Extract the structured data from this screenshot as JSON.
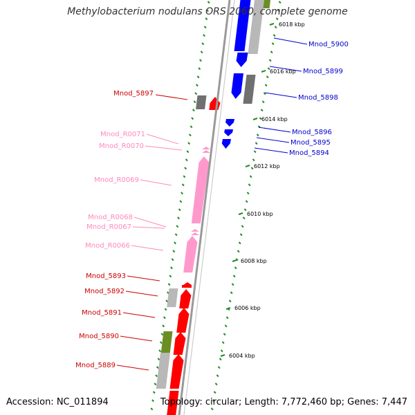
{
  "title": "Methylobacterium nodulans ORS 2060, complete genome",
  "accession": "Accession: NC_011894",
  "topology": "Topology: circular; Length: 7,772,460 bp; Genes: 7,447",
  "colors": {
    "cds_forward": "#ff0000",
    "cds_reverse": "#0000ff",
    "rna": "#ff99cc",
    "label_forward": "#cc0000",
    "label_reverse": "#0000cc",
    "label_rna": "#ff88bb",
    "cog_gray": "#b8b8b8",
    "cog_dark": "#707070",
    "cog_olive": "#6b8e23",
    "tick": "#228b22",
    "backbone": "#999999"
  },
  "scale_labels": [
    "6018 kbp",
    "6016 kbp",
    "6014 kbp",
    "6012 kbp",
    "6010 kbp",
    "6008 kbp",
    "6006 kbp",
    "6004 kbp"
  ],
  "genes": [
    {
      "id": "Mnod_5900",
      "strand": "reverse"
    },
    {
      "id": "Mnod_5899",
      "strand": "reverse"
    },
    {
      "id": "Mnod_5898",
      "strand": "reverse"
    },
    {
      "id": "Mnod_5897",
      "strand": "forward"
    },
    {
      "id": "Mnod_5896",
      "strand": "reverse"
    },
    {
      "id": "Mnod_5895",
      "strand": "reverse"
    },
    {
      "id": "Mnod_5894",
      "strand": "reverse"
    },
    {
      "id": "Mnod_R0071",
      "strand": "forward",
      "type": "rna"
    },
    {
      "id": "Mnod_R0070",
      "strand": "forward",
      "type": "rna"
    },
    {
      "id": "Mnod_R0069",
      "strand": "forward",
      "type": "rna"
    },
    {
      "id": "Mnod_R0068",
      "strand": "forward",
      "type": "rna"
    },
    {
      "id": "Mnod_R0067",
      "strand": "forward",
      "type": "rna"
    },
    {
      "id": "Mnod_R0066",
      "strand": "forward",
      "type": "rna"
    },
    {
      "id": "Mnod_5893",
      "strand": "forward"
    },
    {
      "id": "Mnod_5892",
      "strand": "forward"
    },
    {
      "id": "Mnod_5891",
      "strand": "forward"
    },
    {
      "id": "Mnod_5890",
      "strand": "forward"
    },
    {
      "id": "Mnod_5889",
      "strand": "forward"
    }
  ]
}
